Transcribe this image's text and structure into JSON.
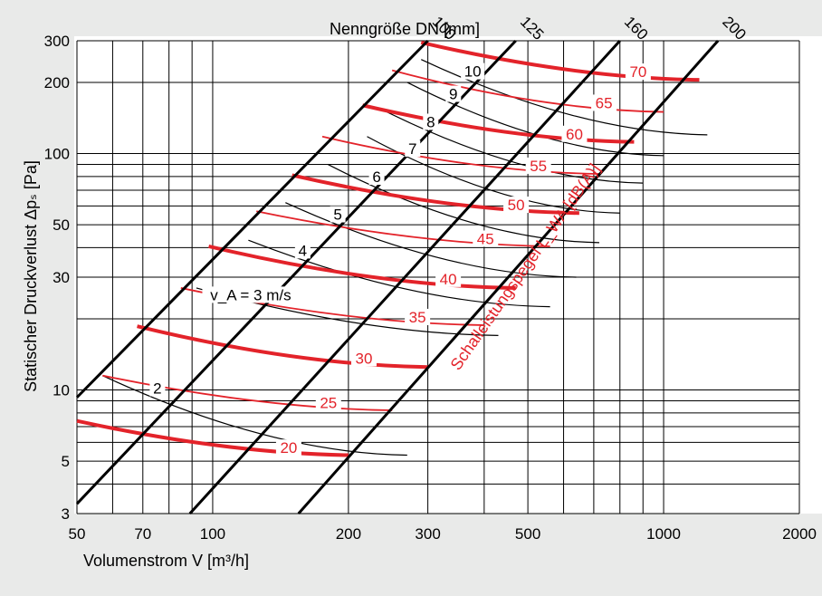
{
  "chart_data": {
    "type": "line",
    "title": "",
    "xlabel": "Volumenstrom V [m³/h]",
    "ylabel": "Statischer Druckverlust  Δpₛ [Pa]",
    "xscale": "log",
    "yscale": "log",
    "xlim": [
      50,
      2000
    ],
    "ylim": [
      3,
      300
    ],
    "x_ticks": [
      50,
      70,
      100,
      200,
      300,
      500,
      1000,
      2000
    ],
    "y_ticks": [
      3,
      5,
      10,
      30,
      50,
      100,
      200,
      300
    ],
    "x_grid": [
      50,
      60,
      70,
      80,
      90,
      100,
      200,
      300,
      400,
      500,
      600,
      700,
      800,
      900,
      1000,
      2000
    ],
    "y_grid": [
      3,
      4,
      5,
      6,
      7,
      8,
      9,
      10,
      20,
      30,
      40,
      50,
      60,
      70,
      80,
      90,
      100,
      200,
      300
    ],
    "top_axis_label": "Nenngröße DN [mm]",
    "duct_sizes": [
      {
        "label": "100",
        "x": [
          50,
          300
        ],
        "y": [
          9.3,
          300
        ]
      },
      {
        "label": "125",
        "x": [
          50,
          470
        ],
        "y": [
          3.3,
          300
        ]
      },
      {
        "label": "160",
        "x": [
          89,
          800
        ],
        "y": [
          3,
          300
        ]
      },
      {
        "label": "200",
        "x": [
          155,
          1320
        ],
        "y": [
          3,
          300
        ]
      }
    ],
    "sound_power_title": "Schalleistungspegel L_WA [dB(A)]",
    "sound_power_curves": [
      {
        "name": "20",
        "x": [
          50,
          200
        ],
        "y": [
          7.4,
          5.3
        ]
      },
      {
        "name": "25",
        "x": [
          57,
          250
        ],
        "y": [
          11.5,
          8.2
        ]
      },
      {
        "name": "30",
        "x": [
          68,
          300
        ],
        "y": [
          18.6,
          12.5
        ]
      },
      {
        "name": "35",
        "x": [
          85,
          400
        ],
        "y": [
          27,
          18.8
        ]
      },
      {
        "name": "40",
        "x": [
          98,
          470
        ],
        "y": [
          40.5,
          27
        ]
      },
      {
        "name": "45",
        "x": [
          125,
          560
        ],
        "y": [
          57,
          40.5
        ]
      },
      {
        "name": "50",
        "x": [
          150,
          650
        ],
        "y": [
          81,
          56
        ]
      },
      {
        "name": "55",
        "x": [
          175,
          720
        ],
        "y": [
          118,
          82
        ]
      },
      {
        "name": "60",
        "x": [
          215,
          860
        ],
        "y": [
          160,
          112
        ]
      },
      {
        "name": "65",
        "x": [
          250,
          1000
        ],
        "y": [
          225,
          150
        ]
      },
      {
        "name": "70",
        "x": [
          290,
          1200
        ],
        "y": [
          295,
          205
        ]
      }
    ],
    "velocity_title": "v_A = 3 m/s",
    "velocity_lines": [
      {
        "name": "2",
        "x": [
          57,
          270
        ],
        "y": [
          11.5,
          5.3
        ]
      },
      {
        "name": "3",
        "x": [
          92,
          430
        ],
        "y": [
          27,
          17
        ]
      },
      {
        "name": "4",
        "x": [
          120,
          560
        ],
        "y": [
          43,
          22.5
        ]
      },
      {
        "name": "5",
        "x": [
          145,
          640
        ],
        "y": [
          62,
          30
        ]
      },
      {
        "name": "6",
        "x": [
          180,
          720
        ],
        "y": [
          90,
          42
        ]
      },
      {
        "name": "7",
        "x": [
          220,
          800
        ],
        "y": [
          118,
          56
        ]
      },
      {
        "name": "8",
        "x": [
          240,
          900
        ],
        "y": [
          152,
          75
        ]
      },
      {
        "name": "9",
        "x": [
          270,
          1000
        ],
        "y": [
          200,
          98
        ]
      },
      {
        "name": "10",
        "x": [
          290,
          1250
        ],
        "y": [
          250,
          120
        ]
      }
    ]
  }
}
